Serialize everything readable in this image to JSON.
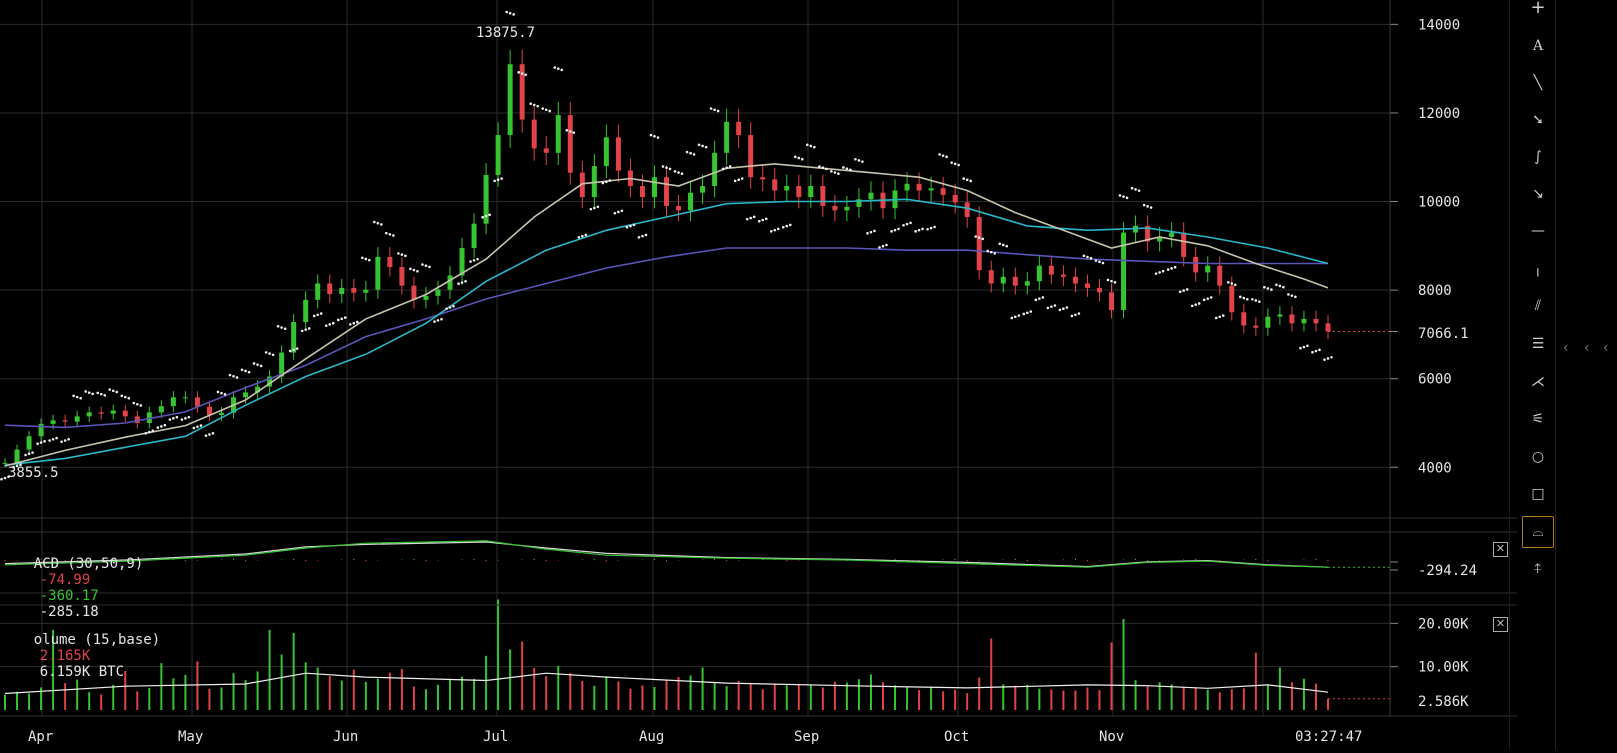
{
  "chart_data": {
    "type": "candlestick",
    "x_ticks": [
      "Apr",
      "May",
      "Jun",
      "Jul",
      "Aug",
      "Sep",
      "Oct",
      "Nov"
    ],
    "time_label": "03:27:47",
    "price_panel": {
      "y_ticks": [
        "14000",
        "12000",
        "10000",
        "8000",
        "6000",
        "4000"
      ],
      "ylim": [
        2900,
        14550
      ],
      "last_price": "7066.1",
      "high_marker": "13875.7",
      "low_marker": "3855.5",
      "close_series": [
        [
          0,
          4100
        ],
        [
          1,
          4400
        ],
        [
          2,
          4700
        ],
        [
          3,
          4980
        ],
        [
          4,
          5060
        ],
        [
          5,
          5030
        ],
        [
          6,
          5150
        ],
        [
          7,
          5240
        ],
        [
          8,
          5210
        ],
        [
          9,
          5280
        ],
        [
          10,
          5150
        ],
        [
          11,
          5000
        ],
        [
          12,
          5240
        ],
        [
          13,
          5380
        ],
        [
          14,
          5580
        ],
        [
          15,
          5580
        ],
        [
          16,
          5370
        ],
        [
          17,
          5180
        ],
        [
          18,
          5230
        ],
        [
          19,
          5580
        ],
        [
          20,
          5690
        ],
        [
          21,
          5820
        ],
        [
          22,
          6050
        ],
        [
          23,
          6590
        ],
        [
          24,
          7280
        ],
        [
          25,
          7780
        ],
        [
          26,
          8150
        ],
        [
          27,
          7910
        ],
        [
          28,
          8050
        ],
        [
          29,
          7940
        ],
        [
          30,
          8010
        ],
        [
          31,
          8750
        ],
        [
          32,
          8520
        ],
        [
          33,
          8100
        ],
        [
          34,
          7780
        ],
        [
          35,
          7870
        ],
        [
          36,
          8010
        ],
        [
          37,
          8330
        ],
        [
          38,
          8950
        ],
        [
          39,
          9500
        ],
        [
          40,
          10600
        ],
        [
          41,
          11500
        ],
        [
          42,
          13100
        ],
        [
          43,
          11850
        ],
        [
          44,
          11200
        ],
        [
          45,
          11100
        ],
        [
          46,
          11950
        ],
        [
          47,
          10650
        ],
        [
          48,
          10100
        ],
        [
          49,
          10800
        ],
        [
          50,
          11450
        ],
        [
          51,
          10700
        ],
        [
          52,
          10350
        ],
        [
          53,
          10100
        ],
        [
          54,
          10550
        ],
        [
          55,
          9900
        ],
        [
          56,
          9800
        ],
        [
          57,
          10200
        ],
        [
          58,
          10350
        ],
        [
          59,
          11100
        ],
        [
          60,
          11800
        ],
        [
          61,
          11500
        ],
        [
          62,
          10550
        ],
        [
          63,
          10500
        ],
        [
          64,
          10250
        ],
        [
          65,
          10350
        ],
        [
          66,
          10100
        ],
        [
          67,
          10350
        ],
        [
          68,
          9900
        ],
        [
          69,
          9800
        ],
        [
          70,
          9880
        ],
        [
          71,
          10050
        ],
        [
          72,
          10200
        ],
        [
          73,
          9850
        ],
        [
          74,
          10250
        ],
        [
          75,
          10400
        ],
        [
          76,
          10250
        ],
        [
          77,
          10300
        ],
        [
          78,
          10150
        ],
        [
          79,
          9980
        ],
        [
          80,
          9650
        ],
        [
          81,
          8450
        ],
        [
          82,
          8150
        ],
        [
          83,
          8300
        ],
        [
          84,
          8100
        ],
        [
          85,
          8200
        ],
        [
          86,
          8550
        ],
        [
          87,
          8350
        ],
        [
          88,
          8300
        ],
        [
          89,
          8150
        ],
        [
          90,
          8050
        ],
        [
          91,
          7950
        ],
        [
          92,
          7550
        ],
        [
          93,
          9300
        ],
        [
          94,
          9450
        ],
        [
          95,
          9100
        ],
        [
          96,
          9200
        ],
        [
          97,
          9300
        ],
        [
          98,
          8750
        ],
        [
          99,
          8400
        ],
        [
          100,
          8550
        ],
        [
          101,
          8100
        ],
        [
          102,
          7500
        ],
        [
          103,
          7200
        ],
        [
          104,
          7150
        ],
        [
          105,
          7400
        ],
        [
          106,
          7450
        ],
        [
          107,
          7250
        ],
        [
          108,
          7350
        ],
        [
          109,
          7250
        ],
        [
          110,
          7066
        ]
      ],
      "ma_light": [
        [
          0,
          4030
        ],
        [
          5,
          4380
        ],
        [
          10,
          4680
        ],
        [
          15,
          4940
        ],
        [
          20,
          5520
        ],
        [
          25,
          6450
        ],
        [
          30,
          7350
        ],
        [
          35,
          7900
        ],
        [
          40,
          8700
        ],
        [
          44,
          9650
        ],
        [
          48,
          10400
        ],
        [
          52,
          10520
        ],
        [
          56,
          10350
        ],
        [
          60,
          10750
        ],
        [
          64,
          10850
        ],
        [
          68,
          10750
        ],
        [
          72,
          10650
        ],
        [
          76,
          10550
        ],
        [
          80,
          10250
        ],
        [
          84,
          9750
        ],
        [
          88,
          9350
        ],
        [
          92,
          8950
        ],
        [
          96,
          9200
        ],
        [
          100,
          9000
        ],
        [
          104,
          8600
        ],
        [
          108,
          8250
        ],
        [
          110,
          8050
        ]
      ],
      "ma_teal": [
        [
          0,
          4050
        ],
        [
          5,
          4200
        ],
        [
          10,
          4450
        ],
        [
          15,
          4700
        ],
        [
          20,
          5400
        ],
        [
          25,
          6050
        ],
        [
          30,
          6550
        ],
        [
          35,
          7250
        ],
        [
          40,
          8200
        ],
        [
          45,
          8900
        ],
        [
          50,
          9350
        ],
        [
          55,
          9650
        ],
        [
          60,
          9950
        ],
        [
          65,
          10000
        ],
        [
          70,
          10000
        ],
        [
          75,
          10050
        ],
        [
          80,
          9850
        ],
        [
          85,
          9450
        ],
        [
          90,
          9350
        ],
        [
          95,
          9400
        ],
        [
          100,
          9200
        ],
        [
          105,
          8950
        ],
        [
          110,
          8600
        ]
      ],
      "ma_purple": [
        [
          0,
          4950
        ],
        [
          5,
          4900
        ],
        [
          10,
          5000
        ],
        [
          15,
          5250
        ],
        [
          20,
          5800
        ],
        [
          25,
          6300
        ],
        [
          30,
          6950
        ],
        [
          35,
          7350
        ],
        [
          40,
          7800
        ],
        [
          45,
          8150
        ],
        [
          50,
          8500
        ],
        [
          55,
          8750
        ],
        [
          60,
          8950
        ],
        [
          65,
          8950
        ],
        [
          70,
          8950
        ],
        [
          75,
          8900
        ],
        [
          80,
          8900
        ],
        [
          85,
          8800
        ],
        [
          90,
          8700
        ],
        [
          95,
          8650
        ],
        [
          100,
          8600
        ],
        [
          110,
          8600
        ]
      ]
    },
    "macd_panel": {
      "label": "ACD (30,50,9)",
      "values": [
        "-74.99",
        "-360.17",
        "-285.18"
      ],
      "value_colors": [
        "#e0434a",
        "#37c431",
        "#e6e6e6"
      ],
      "last_value": "-294.24",
      "macd_line": [
        [
          0,
          -40
        ],
        [
          10,
          -10
        ],
        [
          20,
          40
        ],
        [
          25,
          100
        ],
        [
          30,
          140
        ],
        [
          40,
          160
        ],
        [
          45,
          90
        ],
        [
          50,
          40
        ],
        [
          60,
          15
        ],
        [
          70,
          0
        ],
        [
          80,
          -30
        ],
        [
          90,
          -60
        ],
        [
          95,
          -20
        ],
        [
          100,
          -10
        ],
        [
          105,
          -45
        ],
        [
          110,
          -60
        ]
      ],
      "signal_line": [
        [
          0,
          -30
        ],
        [
          10,
          0
        ],
        [
          20,
          50
        ],
        [
          25,
          110
        ],
        [
          30,
          130
        ],
        [
          40,
          150
        ],
        [
          45,
          100
        ],
        [
          50,
          55
        ],
        [
          60,
          20
        ],
        [
          70,
          5
        ],
        [
          80,
          -20
        ],
        [
          90,
          -55
        ],
        [
          95,
          -15
        ],
        [
          100,
          -5
        ],
        [
          105,
          -40
        ],
        [
          110,
          -60
        ]
      ]
    },
    "volume_panel": {
      "label": "olume (15,base)",
      "values": [
        "2.165K",
        "6.159K BTC"
      ],
      "value_colors": [
        "#e0434a",
        "#e6e6e6"
      ],
      "y_ticks": [
        "20.00K",
        "10.00K"
      ],
      "last_value": "2.586K",
      "ylim": [
        0,
        24000
      ],
      "bars": [
        3500,
        4200,
        3800,
        5200,
        18500,
        6200,
        7000,
        4100,
        3600,
        5800,
        9000,
        4300,
        5100,
        10800,
        7300,
        8100,
        11200,
        4900,
        5200,
        8500,
        6900,
        8900,
        18500,
        12800,
        17800,
        11000,
        9800,
        7800,
        6800,
        9300,
        6500,
        7200,
        8600,
        9500,
        5400,
        4800,
        5800,
        6900,
        7700,
        7200,
        12500,
        25500,
        14000,
        15800,
        9700,
        7800,
        10200,
        8500,
        6700,
        5600,
        7800,
        6600,
        4900,
        5700,
        5300,
        6900,
        7600,
        8000,
        9800,
        6200,
        5500,
        6700,
        6300,
        4800,
        6100,
        5700,
        5900,
        5700,
        5200,
        6500,
        6300,
        7100,
        8200,
        6400,
        5700,
        5200,
        4600,
        5400,
        4300,
        4700,
        3900,
        7500,
        16500,
        5900,
        5600,
        5800,
        4900,
        4700,
        4500,
        4500,
        5200,
        4600,
        15600,
        21000,
        6900,
        5500,
        6400,
        5900,
        5400,
        5200,
        4700,
        4100,
        4800,
        5000,
        13200,
        5800,
        9800,
        6400,
        7200,
        6100,
        2586
      ],
      "ma": [
        [
          0,
          3800
        ],
        [
          10,
          5500
        ],
        [
          20,
          6000
        ],
        [
          25,
          8500
        ],
        [
          30,
          7600
        ],
        [
          40,
          6800
        ],
        [
          45,
          8500
        ],
        [
          50,
          7600
        ],
        [
          60,
          6200
        ],
        [
          70,
          5600
        ],
        [
          80,
          5100
        ],
        [
          90,
          5800
        ],
        [
          95,
          5600
        ],
        [
          100,
          5000
        ],
        [
          105,
          5800
        ],
        [
          110,
          4100
        ]
      ]
    }
  },
  "toolbar": {
    "tools": [
      "crosshair",
      "text",
      "trend-line",
      "arrow-marker",
      "brush",
      "arrow",
      "horizontal-line",
      "vertical-line",
      "parallel-channel",
      "horizontal-lines",
      "pitchfork",
      "fib-fan",
      "ellipse",
      "rectangle",
      "chart-properties",
      "magnet"
    ],
    "active": "chart-properties"
  },
  "colors": {
    "up": "#37c431",
    "down": "#e0434a",
    "ma_light": "#c7c4ad",
    "ma_teal": "#29b7c8",
    "ma_purple": "#5a55b8",
    "sar": "#f2f2f2",
    "grid": "#2b2b2b"
  }
}
